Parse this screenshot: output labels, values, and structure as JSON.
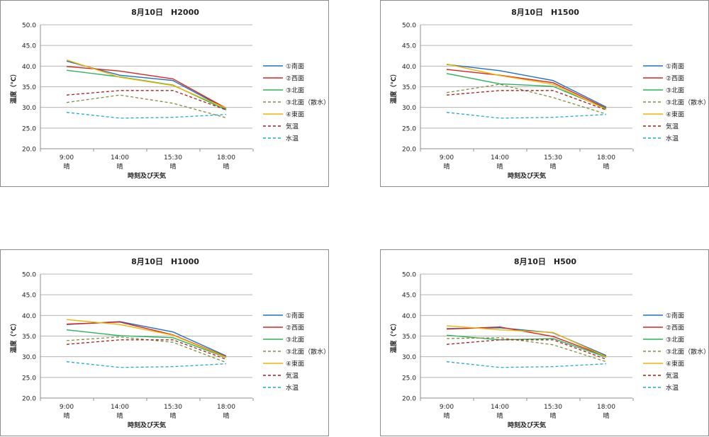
{
  "chart_data": [
    {
      "type": "line",
      "title": "8月10日　H2000",
      "xlabel": "時刻及び天気",
      "ylabel": "温度（℃）",
      "ylim": [
        20.0,
        50.0
      ],
      "yticks": [
        "20.0",
        "25.0",
        "30.0",
        "35.0",
        "40.0",
        "45.0",
        "50.0"
      ],
      "categories": [
        {
          "time": "9:00",
          "weather": "晴"
        },
        {
          "time": "14:00",
          "weather": "晴"
        },
        {
          "time": "15:30",
          "weather": "晴"
        },
        {
          "time": "18:00",
          "weather": "晴"
        }
      ],
      "series": [
        {
          "name": "①南面",
          "values": [
            41.2,
            37.8,
            36.5,
            29.6
          ],
          "color": "#1f6fc5",
          "dash": false
        },
        {
          "name": "②西面",
          "values": [
            39.9,
            38.8,
            36.9,
            29.8
          ],
          "color": "#d7261e",
          "dash": false
        },
        {
          "name": "③北面",
          "values": [
            39.0,
            37.4,
            35.4,
            29.4
          ],
          "color": "#2bb35a",
          "dash": false
        },
        {
          "name": "③北面（散水）",
          "values": [
            31.2,
            33.0,
            31.0,
            27.5
          ],
          "color": "#7f8f3a",
          "dash": true
        },
        {
          "name": "④東面",
          "values": [
            41.5,
            37.3,
            35.3,
            29.8
          ],
          "color": "#f2b400",
          "dash": false
        },
        {
          "name": "気温",
          "values": [
            33.0,
            34.1,
            34.1,
            29.4
          ],
          "color": "#b01818",
          "dash": true
        },
        {
          "name": "水温",
          "values": [
            28.8,
            27.4,
            27.6,
            28.3
          ],
          "color": "#1aa9d6",
          "dash": true
        }
      ]
    },
    {
      "type": "line",
      "title": "8月10日　H1500",
      "xlabel": "時刻及び天気",
      "ylabel": "温度（℃）",
      "ylim": [
        20.0,
        50.0
      ],
      "yticks": [
        "20.0",
        "25.0",
        "30.0",
        "35.0",
        "40.0",
        "45.0",
        "50.0"
      ],
      "categories": [
        {
          "time": "9:00",
          "weather": "晴"
        },
        {
          "time": "14:00",
          "weather": "晴"
        },
        {
          "time": "15:30",
          "weather": "晴"
        },
        {
          "time": "18:00",
          "weather": "晴"
        }
      ],
      "series": [
        {
          "name": "①南面",
          "values": [
            40.4,
            38.9,
            36.5,
            30.1
          ],
          "color": "#1f6fc5",
          "dash": false
        },
        {
          "name": "②西面",
          "values": [
            39.2,
            37.8,
            36.0,
            29.8
          ],
          "color": "#d7261e",
          "dash": false
        },
        {
          "name": "③北面",
          "values": [
            38.2,
            35.7,
            35.1,
            29.7
          ],
          "color": "#2bb35a",
          "dash": false
        },
        {
          "name": "③北面（散水）",
          "values": [
            33.6,
            35.6,
            32.4,
            28.4
          ],
          "color": "#7f8f3a",
          "dash": true
        },
        {
          "name": "④東面",
          "values": [
            40.5,
            37.7,
            35.6,
            29.5
          ],
          "color": "#f2b400",
          "dash": false
        },
        {
          "name": "気温",
          "values": [
            33.0,
            34.1,
            34.1,
            29.4
          ],
          "color": "#b01818",
          "dash": true
        },
        {
          "name": "水温",
          "values": [
            28.8,
            27.4,
            27.6,
            28.3
          ],
          "color": "#1aa9d6",
          "dash": true
        }
      ]
    },
    {
      "type": "line",
      "title": "8月10日　H1000",
      "xlabel": "時刻及び天気",
      "ylabel": "温度（℃）",
      "ylim": [
        20.0,
        50.0
      ],
      "yticks": [
        "20.0",
        "25.0",
        "30.0",
        "35.0",
        "40.0",
        "45.0",
        "50.0"
      ],
      "categories": [
        {
          "time": "9:00",
          "weather": "晴"
        },
        {
          "time": "14:00",
          "weather": "晴"
        },
        {
          "time": "15:30",
          "weather": "晴"
        },
        {
          "time": "18:00",
          "weather": "晴"
        }
      ],
      "series": [
        {
          "name": "①南面",
          "values": [
            37.8,
            38.5,
            36.0,
            30.2
          ],
          "color": "#1f6fc5",
          "dash": false
        },
        {
          "name": "②西面",
          "values": [
            37.9,
            38.4,
            35.3,
            30.0
          ],
          "color": "#d7261e",
          "dash": false
        },
        {
          "name": "③北面",
          "values": [
            36.5,
            35.1,
            34.6,
            29.8
          ],
          "color": "#2bb35a",
          "dash": false
        },
        {
          "name": "③北面（散水）",
          "values": [
            33.9,
            34.8,
            33.5,
            28.6
          ],
          "color": "#7f8f3a",
          "dash": true
        },
        {
          "name": "④東面",
          "values": [
            39.0,
            37.8,
            35.2,
            29.9
          ],
          "color": "#f2b400",
          "dash": false
        },
        {
          "name": "気温",
          "values": [
            33.0,
            34.1,
            34.1,
            29.4
          ],
          "color": "#b01818",
          "dash": true
        },
        {
          "name": "水温",
          "values": [
            28.8,
            27.4,
            27.6,
            28.3
          ],
          "color": "#1aa9d6",
          "dash": true
        }
      ]
    },
    {
      "type": "line",
      "title": "8月10日　H500",
      "xlabel": "時刻及び天気",
      "ylabel": "温度（℃）",
      "ylim": [
        20.0,
        50.0
      ],
      "yticks": [
        "20.0",
        "25.0",
        "30.0",
        "35.0",
        "40.0",
        "45.0",
        "50.0"
      ],
      "categories": [
        {
          "time": "9:00",
          "weather": "晴"
        },
        {
          "time": "14:00",
          "weather": "晴"
        },
        {
          "time": "15:30",
          "weather": "晴"
        },
        {
          "time": "18:00",
          "weather": "晴"
        }
      ],
      "series": [
        {
          "name": "①南面",
          "values": [
            36.8,
            37.0,
            35.8,
            30.3
          ],
          "color": "#1f6fc5",
          "dash": false
        },
        {
          "name": "②西面",
          "values": [
            36.7,
            37.2,
            34.9,
            30.1
          ],
          "color": "#d7261e",
          "dash": false
        },
        {
          "name": "③北面",
          "values": [
            35.2,
            34.1,
            34.4,
            29.9
          ],
          "color": "#2bb35a",
          "dash": false
        },
        {
          "name": "③北面（散水）",
          "values": [
            34.4,
            34.6,
            32.9,
            28.8
          ],
          "color": "#7f8f3a",
          "dash": true
        },
        {
          "name": "④東面",
          "values": [
            37.5,
            36.5,
            35.9,
            30.0
          ],
          "color": "#f2b400",
          "dash": false
        },
        {
          "name": "気温",
          "values": [
            33.0,
            34.1,
            34.1,
            29.4
          ],
          "color": "#b01818",
          "dash": true
        },
        {
          "name": "水温",
          "values": [
            28.8,
            27.4,
            27.6,
            28.3
          ],
          "color": "#1aa9d6",
          "dash": true
        }
      ]
    }
  ]
}
